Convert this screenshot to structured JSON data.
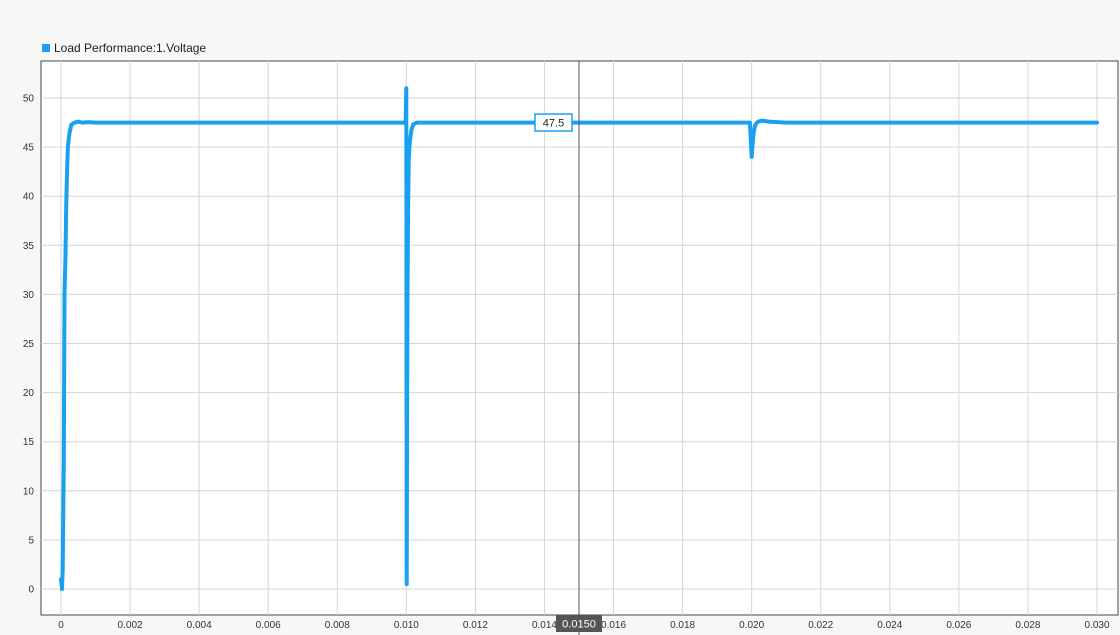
{
  "legend": {
    "label": "Load Performance:1.Voltage"
  },
  "cursor": {
    "x_label": "0.0150",
    "x_value": 0.015,
    "y_label": "47.5"
  },
  "colors": {
    "series": "#1aa0f0",
    "grid": "#d6d6d6",
    "cursor": "#555555",
    "cursor_label_bg": "#555555"
  },
  "chart_data": {
    "type": "line",
    "title": "",
    "xlabel": "",
    "ylabel": "",
    "xlim": [
      0,
      0.03
    ],
    "ylim": [
      0,
      52
    ],
    "grid": true,
    "legend_position": "top-left",
    "x_ticks": [
      "0",
      "0.002",
      "0.004",
      "0.006",
      "0.008",
      "0.010",
      "0.012",
      "0.014",
      "0.016",
      "0.018",
      "0.020",
      "0.022",
      "0.024",
      "0.026",
      "0.028",
      "0.030"
    ],
    "y_ticks": [
      "0",
      "5",
      "10",
      "15",
      "20",
      "25",
      "30",
      "35",
      "40",
      "45",
      "50"
    ],
    "series": [
      {
        "name": "Load Performance:1.Voltage",
        "x": [
          0,
          3e-05,
          5e-05,
          8e-05,
          0.0001,
          0.00013,
          0.00015,
          0.00018,
          0.0002,
          0.00023,
          0.00025,
          0.00028,
          0.0003,
          0.0004,
          0.0005,
          0.0006,
          0.0008,
          0.001,
          0.002,
          0.004,
          0.006,
          0.008,
          0.0099,
          0.00995,
          0.00998,
          0.01,
          0.01001,
          0.01003,
          0.01005,
          0.01007,
          0.0101,
          0.01015,
          0.0102,
          0.0103,
          0.0104,
          0.0106,
          0.011,
          0.012,
          0.014,
          0.016,
          0.018,
          0.0199,
          0.01995,
          0.02,
          0.02003,
          0.02006,
          0.0201,
          0.02015,
          0.0202,
          0.0203,
          0.0205,
          0.021,
          0.022,
          0.024,
          0.026,
          0.028,
          0.03
        ],
        "values": [
          1,
          0,
          2,
          13,
          30,
          34,
          39,
          43,
          45,
          46,
          46.5,
          47,
          47.3,
          47.5,
          47.6,
          47.5,
          47.55,
          47.5,
          47.5,
          47.5,
          47.5,
          47.5,
          47.5,
          47.5,
          47.4,
          51,
          0.5,
          28,
          39,
          44,
          45.5,
          46.8,
          47.3,
          47.5,
          47.5,
          47.5,
          47.5,
          47.5,
          47.5,
          47.5,
          47.5,
          47.5,
          47.5,
          44,
          45.5,
          46.5,
          47.2,
          47.5,
          47.6,
          47.7,
          47.6,
          47.5,
          47.5,
          47.5,
          47.5,
          47.5,
          47.5
        ]
      }
    ]
  }
}
